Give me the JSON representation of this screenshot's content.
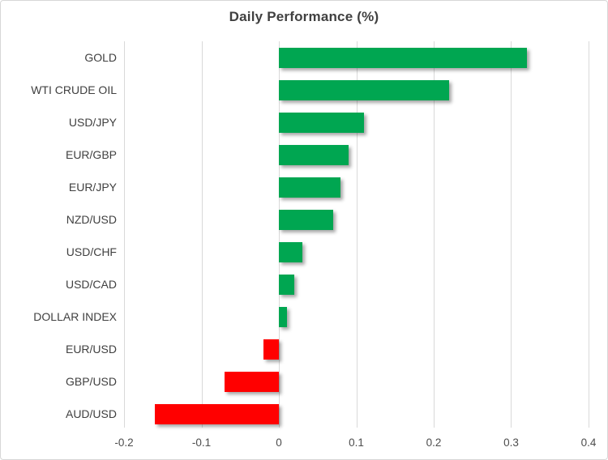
{
  "chart_data": {
    "type": "bar",
    "orientation": "horizontal",
    "title": "Daily Performance (%)",
    "categories": [
      "GOLD",
      "WTI CRUDE OIL",
      "USD/JPY",
      "EUR/GBP",
      "EUR/JPY",
      "NZD/USD",
      "USD/CHF",
      "USD/CAD",
      "DOLLAR INDEX",
      "EUR/USD",
      "GBP/USD",
      "AUD/USD"
    ],
    "values": [
      0.32,
      0.22,
      0.11,
      0.09,
      0.08,
      0.07,
      0.03,
      0.02,
      0.01,
      -0.02,
      -0.07,
      -0.16
    ],
    "xlim": [
      -0.2,
      0.4
    ],
    "x_ticks": [
      -0.2,
      -0.1,
      0,
      0.1,
      0.2,
      0.3,
      0.4
    ],
    "x_tick_labels": [
      "-0.2",
      "-0.1",
      "0",
      "0.1",
      "0.2",
      "0.3",
      "0.4"
    ],
    "grid": "vertical-only",
    "legend": "none",
    "colors": {
      "positive": "#00A651",
      "negative": "#FF0000",
      "gridline": "#D9D9D9",
      "title": "#404040",
      "category_labels": "#404040",
      "tick_labels": "#4D4D4D"
    }
  }
}
